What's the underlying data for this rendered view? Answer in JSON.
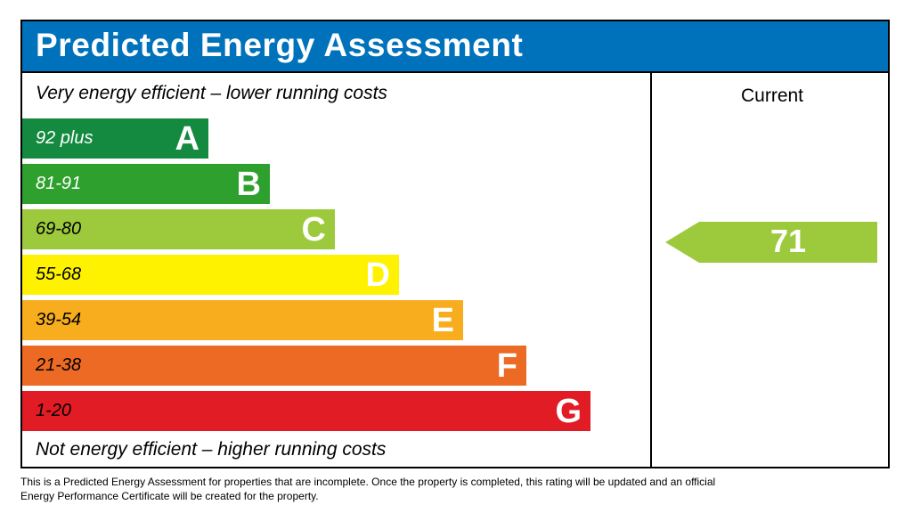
{
  "title": "Predicted Energy Assessment",
  "caption_top": "Very energy efficient – lower running costs",
  "caption_bottom": "Not energy efficient – higher running costs",
  "current_label": "Current",
  "footnote": "This is a Predicted Energy Assessment for properties that are incomplete. Once the property is completed, this rating will be updated and an official Energy Performance Certificate will be created for the property.",
  "chart_data": {
    "type": "bar",
    "title": "Predicted Energy Assessment",
    "categories": [
      "A",
      "B",
      "C",
      "D",
      "E",
      "F",
      "G"
    ],
    "bands": [
      {
        "letter": "A",
        "range": "92 plus",
        "color": "#138a3f",
        "text_color": "#ffffff"
      },
      {
        "letter": "B",
        "range": "81-91",
        "color": "#2ea02e",
        "text_color": "#ffffff"
      },
      {
        "letter": "C",
        "range": "69-80",
        "color": "#9dca3c",
        "text_color": "#000000"
      },
      {
        "letter": "D",
        "range": "55-68",
        "color": "#fff200",
        "text_color": "#000000"
      },
      {
        "letter": "E",
        "range": "39-54",
        "color": "#f7ad1e",
        "text_color": "#000000"
      },
      {
        "letter": "F",
        "range": "21-38",
        "color": "#ed6a24",
        "text_color": "#000000"
      },
      {
        "letter": "G",
        "range": "1-20",
        "color": "#e11c24",
        "text_color": "#000000"
      }
    ],
    "current": {
      "value": 71,
      "band": "C",
      "color": "#9dca3c"
    }
  }
}
